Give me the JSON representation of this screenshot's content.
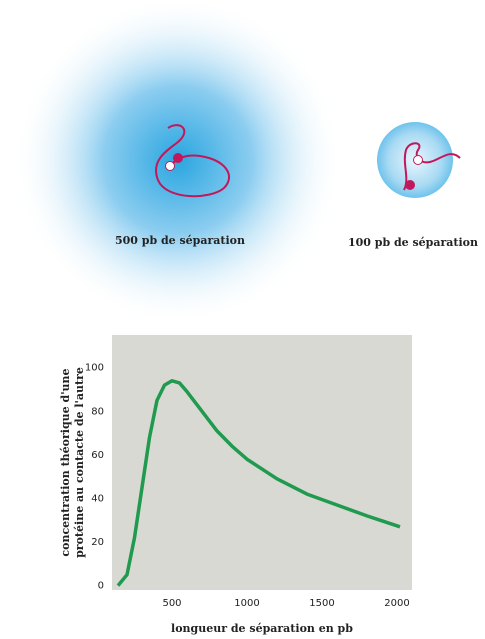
{
  "diagram": {
    "labels": [
      "500 pb de séparation",
      "100 pb de séparation"
    ]
  },
  "chart_data": {
    "type": "line",
    "x_label": "longueur de séparation en pb",
    "y_label": [
      "concentration théorique d'une",
      "protéine au contacte de l'autre"
    ],
    "x": [
      140,
      200,
      250,
      300,
      350,
      400,
      450,
      500,
      550,
      600,
      700,
      800,
      900,
      1000,
      1200,
      1400,
      1600,
      1800,
      2020
    ],
    "series": [
      {
        "color": "#1f9a4e",
        "values": [
          0,
          5,
          22,
          45,
          68,
          85,
          92,
          94,
          93,
          89,
          80,
          71,
          64,
          58,
          49,
          42,
          37,
          32,
          27
        ]
      }
    ],
    "xlim": [
      100,
      2100
    ],
    "ylim": [
      -2,
      115
    ],
    "xticks": [
      500,
      1000,
      1500,
      2000
    ],
    "yticks": [
      0,
      20,
      40,
      60,
      80,
      100
    ],
    "background": "#d9d9d4"
  }
}
